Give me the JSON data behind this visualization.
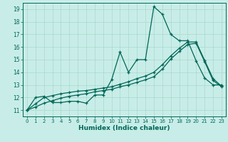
{
  "xlabel": "Humidex (Indice chaleur)",
  "bg_color": "#c8ede8",
  "grid_color": "#a8d8cc",
  "line_color": "#006655",
  "xlim": [
    -0.5,
    23.5
  ],
  "ylim": [
    10.5,
    19.5
  ],
  "xticks": [
    0,
    1,
    2,
    3,
    4,
    5,
    6,
    7,
    8,
    9,
    10,
    11,
    12,
    13,
    14,
    15,
    16,
    17,
    18,
    19,
    20,
    21,
    22,
    23
  ],
  "yticks": [
    11,
    12,
    13,
    14,
    15,
    16,
    17,
    18,
    19
  ],
  "series1_x": [
    0,
    1,
    2,
    3,
    4,
    5,
    6,
    7,
    8,
    9,
    10,
    11,
    12,
    13,
    14,
    15,
    16,
    17,
    18,
    19,
    20,
    21,
    22,
    23
  ],
  "series1_y": [
    11.0,
    12.0,
    12.1,
    11.6,
    11.6,
    11.7,
    11.7,
    11.55,
    12.2,
    12.2,
    13.4,
    15.6,
    14.0,
    15.0,
    15.0,
    19.2,
    18.6,
    17.0,
    16.5,
    16.5,
    14.9,
    13.55,
    13.0,
    13.0
  ],
  "series2_x": [
    0,
    1,
    2,
    3,
    4,
    5,
    6,
    7,
    8,
    9,
    10,
    11,
    12,
    13,
    14,
    15,
    16,
    17,
    18,
    19,
    20,
    21,
    22,
    23
  ],
  "series2_y": [
    11.0,
    11.5,
    12.0,
    12.15,
    12.3,
    12.4,
    12.5,
    12.55,
    12.65,
    12.75,
    12.85,
    13.05,
    13.25,
    13.5,
    13.7,
    14.0,
    14.6,
    15.3,
    15.9,
    16.4,
    16.4,
    14.95,
    13.5,
    12.9
  ],
  "series3_x": [
    0,
    1,
    2,
    3,
    4,
    5,
    6,
    7,
    8,
    9,
    10,
    11,
    12,
    13,
    14,
    15,
    16,
    17,
    18,
    19,
    20,
    21,
    22,
    23
  ],
  "series3_y": [
    11.0,
    11.25,
    11.55,
    11.75,
    11.95,
    12.1,
    12.2,
    12.3,
    12.45,
    12.55,
    12.65,
    12.85,
    13.0,
    13.2,
    13.4,
    13.65,
    14.25,
    15.05,
    15.65,
    16.2,
    16.3,
    14.85,
    13.35,
    12.85
  ]
}
